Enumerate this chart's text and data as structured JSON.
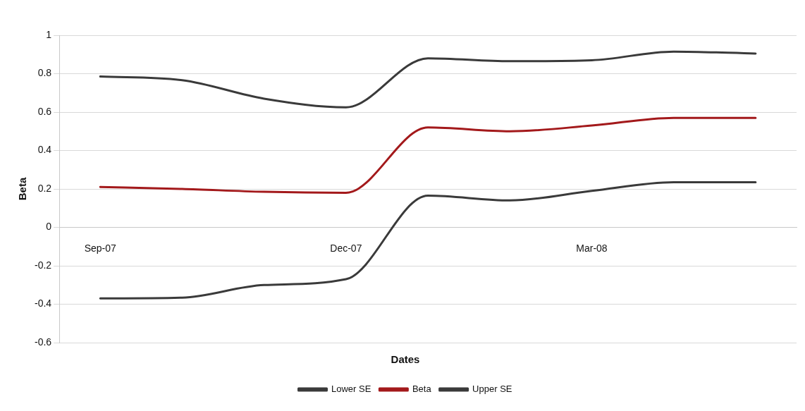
{
  "chart_data": {
    "type": "line",
    "xlabel": "Dates",
    "ylabel": "Beta",
    "categories": [
      "Sep-07",
      null,
      null,
      "Dec-07",
      null,
      null,
      "Mar-08",
      null,
      null
    ],
    "series": [
      {
        "name": "Lower SE",
        "color": "#3a3a3a",
        "values": [
          -0.37,
          -0.366,
          -0.3,
          -0.27,
          0.165,
          0.14,
          0.19,
          0.235,
          0.235
        ]
      },
      {
        "name": "Beta",
        "color": "#a3191b",
        "values": [
          0.21,
          0.2,
          0.185,
          0.18,
          0.52,
          0.5,
          0.53,
          0.57,
          0.57
        ]
      },
      {
        "name": "Upper SE",
        "color": "#3a3a3a",
        "values": [
          0.785,
          0.766,
          0.67,
          0.625,
          0.88,
          0.865,
          0.87,
          0.915,
          0.905
        ]
      }
    ],
    "ylim": [
      -0.6,
      1
    ],
    "yticks": [
      -0.6,
      -0.4,
      -0.2,
      0,
      0.2,
      0.4,
      0.6,
      0.8,
      1
    ],
    "grid": "y",
    "legend": "bottom",
    "marker": "none",
    "line_style": "solid"
  }
}
